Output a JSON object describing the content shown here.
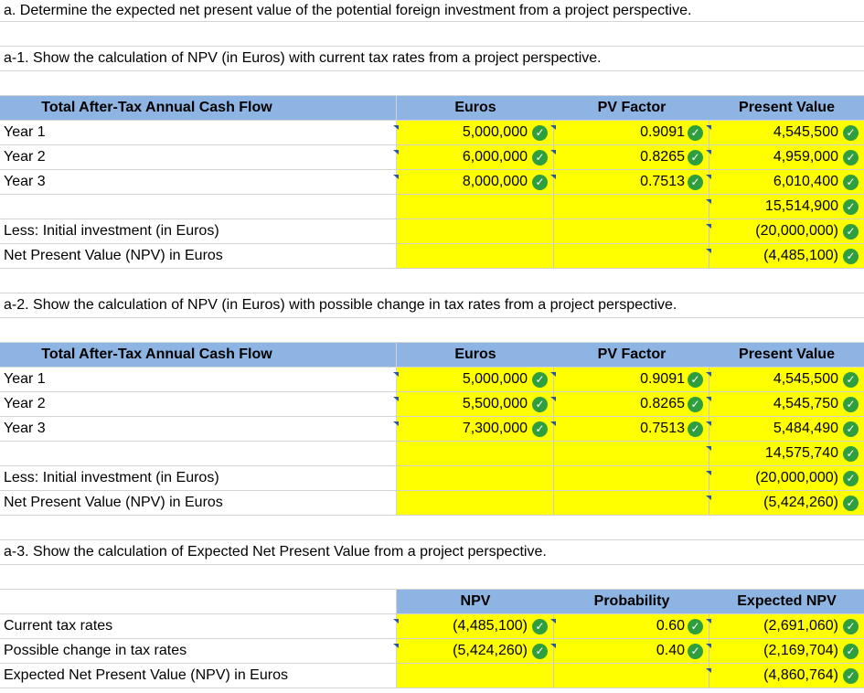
{
  "headings": {
    "a": "a. Determine the expected net present value of the potential foreign investment from a project perspective.",
    "a1": "a-1. Show the calculation of NPV (in Euros) with current tax rates from a project perspective.",
    "a2": "a-2. Show the calculation of NPV (in Euros) with possible change in tax rates from a project perspective.",
    "a3": "a-3. Show the calculation of Expected Net Present Value from a project perspective."
  },
  "table1": {
    "headers": [
      "Total After-Tax Annual Cash Flow",
      "Euros",
      "PV Factor",
      "Present Value"
    ],
    "rows": [
      {
        "label": "Year 1",
        "euros": "5,000,000",
        "pv_factor": "0.9091",
        "pv": "4,545,500"
      },
      {
        "label": "Year 2",
        "euros": "6,000,000",
        "pv_factor": "0.8265",
        "pv": "4,959,000"
      },
      {
        "label": "Year 3",
        "euros": "8,000,000",
        "pv_factor": "0.7513",
        "pv": "6,010,400"
      }
    ],
    "subtotal": "15,514,900",
    "investment_label": "Less: Initial investment (in Euros)",
    "investment": "(20,000,000)",
    "npv_label": "Net Present Value (NPV) in Euros",
    "npv": "(4,485,100)"
  },
  "table2": {
    "headers": [
      "Total After-Tax Annual Cash Flow",
      "Euros",
      "PV Factor",
      "Present Value"
    ],
    "rows": [
      {
        "label": "Year 1",
        "euros": "5,000,000",
        "pv_factor": "0.9091",
        "pv": "4,545,500"
      },
      {
        "label": "Year 2",
        "euros": "5,500,000",
        "pv_factor": "0.8265",
        "pv": "4,545,750"
      },
      {
        "label": "Year 3",
        "euros": "7,300,000",
        "pv_factor": "0.7513",
        "pv": "5,484,490"
      }
    ],
    "subtotal": "14,575,740",
    "investment_label": "Less: Initial investment (in Euros)",
    "investment": "(20,000,000)",
    "npv_label": "Net Present Value (NPV) in Euros",
    "npv": "(5,424,260)"
  },
  "table3": {
    "headers": [
      "NPV",
      "Probability",
      "Expected NPV"
    ],
    "rows": [
      {
        "label": "Current tax rates",
        "npv": "(4,485,100)",
        "prob": "0.60",
        "enpv": "(2,691,060)"
      },
      {
        "label": "Possible change in tax rates",
        "npv": "(5,424,260)",
        "prob": "0.40",
        "enpv": "(2,169,704)"
      }
    ],
    "total_label": "Expected Net Present Value (NPV) in Euros",
    "total": "(4,860,764)"
  },
  "icons": {
    "check": "check-circle-icon",
    "marker": "cell-marker-icon"
  },
  "colors": {
    "input_fill": "#ffff00",
    "header_fill": "#8db4e2",
    "check": "#2f9e3e"
  }
}
